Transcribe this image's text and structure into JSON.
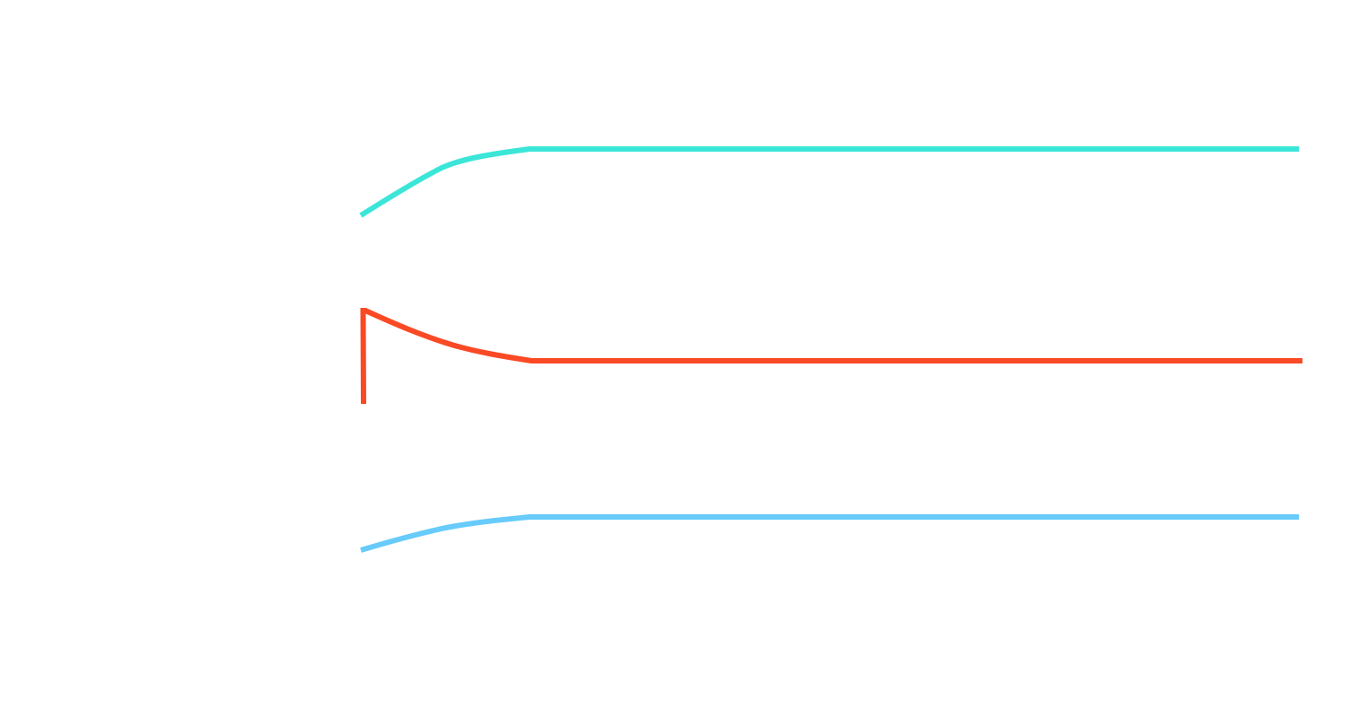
{
  "diagram": {
    "background": "#ffffff",
    "curves": [
      {
        "id": "curve-top-teal",
        "color": "#3be6d8"
      },
      {
        "id": "curve-middle-orange",
        "color": "#fa4a25"
      },
      {
        "id": "curve-bottom-blue",
        "color": "#67cbfb"
      }
    ]
  }
}
